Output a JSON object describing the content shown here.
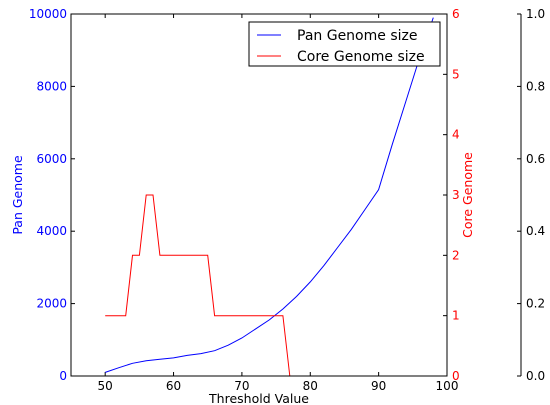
{
  "chart_data": {
    "type": "line",
    "xlabel": "Threshold Value",
    "xlim": [
      45,
      100
    ],
    "x_ticks": [
      "50",
      "60",
      "70",
      "80",
      "90",
      "100"
    ],
    "axes": {
      "left": {
        "label": "Pan Genome",
        "color": "#0000ff",
        "lim": [
          0,
          10000
        ],
        "ticks": [
          "0",
          "2000",
          "4000",
          "6000",
          "8000",
          "10000"
        ]
      },
      "right": {
        "label": "Core Genome",
        "color": "#ff0000",
        "lim": [
          0,
          6
        ],
        "ticks": [
          "0",
          "1",
          "2",
          "3",
          "4",
          "5",
          "6"
        ]
      },
      "far_right": {
        "label": "",
        "color": "#000000",
        "lim": [
          0,
          1
        ],
        "ticks": [
          "0.0",
          "0.2",
          "0.4",
          "0.6",
          "0.8",
          "1.0"
        ]
      }
    },
    "legend": {
      "placement": "top-right",
      "entries": [
        "Pan Genome size",
        "Core Genome size"
      ]
    },
    "series": [
      {
        "name": "Pan Genome size",
        "axis": "left",
        "color": "#0000ff",
        "x": [
          50,
          52,
          54,
          56,
          58,
          60,
          62,
          64,
          66,
          68,
          70,
          72,
          74,
          76,
          78,
          80,
          82,
          84,
          86,
          88,
          90,
          92,
          94,
          96,
          98
        ],
        "y": [
          100,
          230,
          350,
          420,
          460,
          500,
          570,
          620,
          700,
          850,
          1050,
          1300,
          1550,
          1850,
          2200,
          2600,
          3050,
          3550,
          4050,
          4600,
          5150,
          6400,
          7600,
          8800,
          9900
        ]
      },
      {
        "name": "Core Genome size",
        "axis": "right",
        "color": "#ff0000",
        "x": [
          50,
          53,
          54,
          55,
          56,
          57,
          58,
          59,
          60,
          61,
          62,
          63,
          64,
          65,
          66,
          67,
          68,
          69,
          70,
          71,
          72,
          73,
          74,
          75,
          76,
          77
        ],
        "y": [
          1,
          1,
          2,
          2,
          3,
          3,
          2,
          2,
          2,
          2,
          2,
          2,
          2,
          2,
          1,
          1,
          1,
          1,
          1,
          1,
          1,
          1,
          1,
          1,
          1,
          0
        ]
      }
    ]
  }
}
